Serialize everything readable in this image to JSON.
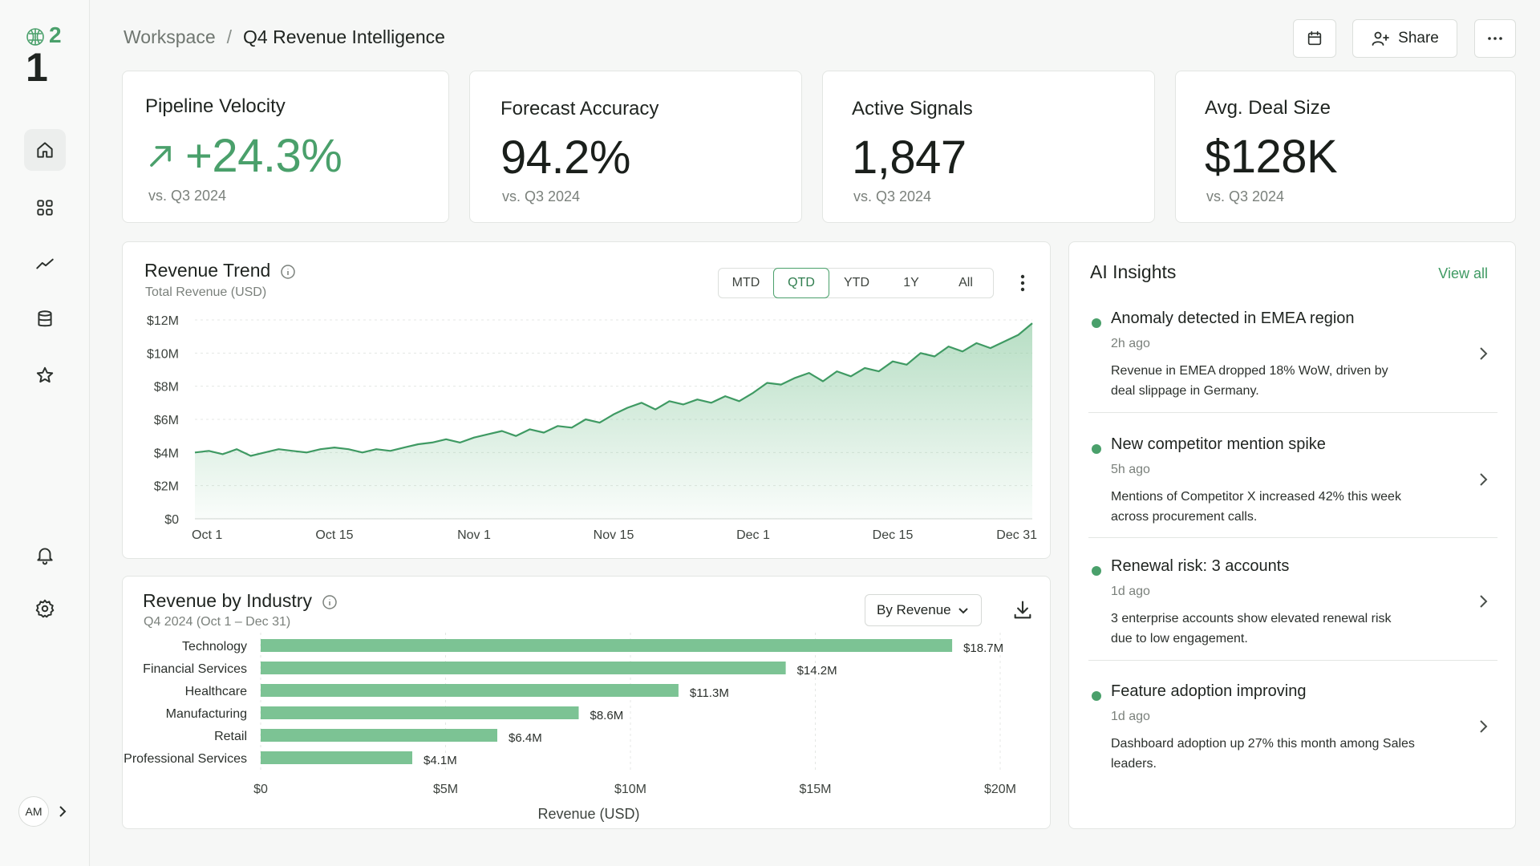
{
  "app": {
    "logo_text": "1",
    "logo_superscript": "2",
    "avatar_initials": "AM"
  },
  "breadcrumb": {
    "root": "Workspace",
    "separator": "/",
    "current": "Q4 Revenue Intelligence"
  },
  "header": {
    "share_label": "Share"
  },
  "sidebar": {
    "items": [
      {
        "name": "home",
        "icon": "home-icon",
        "active": true
      },
      {
        "name": "grid",
        "icon": "grid-icon"
      },
      {
        "name": "analytics",
        "icon": "trend-icon"
      },
      {
        "name": "data",
        "icon": "database-icon"
      },
      {
        "name": "favorites",
        "icon": "star-icon"
      },
      {
        "name": "notifications",
        "icon": "bell-icon"
      },
      {
        "name": "settings",
        "icon": "gear-icon"
      }
    ]
  },
  "kpis": [
    {
      "title": "Pipeline Velocity",
      "value": "+24.3%",
      "sub": "vs. Q3 2024",
      "trend": "up"
    },
    {
      "title": "Forecast  Accuracy",
      "value": "94.2%",
      "sub": "vs. Q3 2024"
    },
    {
      "title": "Active  Signals",
      "value": "1,847",
      "sub": "vs. Q3 2024"
    },
    {
      "title": "Avg. Deal Size",
      "value": "$128K",
      "sub": "vs. Q3 2024"
    }
  ],
  "revenue_trend": {
    "title": "Revenue Trend",
    "subtitle": "Total Revenue (USD)",
    "ranges": [
      "MTD",
      "QTD",
      "YTD",
      "1Y",
      "All"
    ],
    "active_range": "QTD"
  },
  "industry": {
    "title": "Revenue by Industry",
    "subtitle": "Q4 2024 (Oct 1 – Dec 31)",
    "sort_label": "By Revenue"
  },
  "insights": {
    "title": "AI Insights",
    "view_all": "View all",
    "items": [
      {
        "title": "Anomaly detected in EMEA region",
        "time": "2h ago",
        "body": "Revenue in EMEA dropped 18% WoW, driven by deal slippage in Germany."
      },
      {
        "title": "New competitor mention spike",
        "time": "5h ago",
        "body": "Mentions of Competitor X increased 42% this week across procurement calls."
      },
      {
        "title": "Renewal risk: 3 accounts",
        "time": "1d ago",
        "body": "3 enterprise accounts show elevated renewal risk due to low engagement."
      },
      {
        "title": "Feature adoption improving",
        "time": "1d ago",
        "body": "Dashboard adoption up 27% this month among Sales leaders."
      }
    ]
  },
  "colors": {
    "accent": "#4aa06b",
    "bar": "#7cc394",
    "line": "#3f9a63"
  },
  "chart_data": [
    {
      "type": "area",
      "title": "Revenue Trend",
      "subtitle": "Total Revenue (USD)",
      "xlabel": "",
      "ylabel": "",
      "x_ticks": [
        "Oct 1",
        "Oct 15",
        "Nov 1",
        "Nov 15",
        "Dec 1",
        "Dec 15",
        "Dec 31"
      ],
      "y_ticks": [
        "$0",
        "$2M",
        "$4M",
        "$6M",
        "$8M",
        "$10M",
        "$12M"
      ],
      "ylim": [
        0,
        12
      ],
      "unit": "$M",
      "grid": true,
      "series": [
        {
          "values": [
            4.0,
            4.1,
            3.9,
            4.2,
            3.8,
            4.0,
            4.2,
            4.1,
            4.0,
            4.2,
            4.3,
            4.2,
            4.0,
            4.2,
            4.1,
            4.3,
            4.5,
            4.6,
            4.8,
            4.6,
            4.9,
            5.1,
            5.3,
            5.0,
            5.4,
            5.2,
            5.6,
            5.5,
            6.0,
            5.8,
            6.3,
            6.7,
            7.0,
            6.6,
            7.1,
            6.9,
            7.2,
            7.0,
            7.4,
            7.1,
            7.6,
            8.2,
            8.1,
            8.5,
            8.8,
            8.3,
            8.9,
            8.6,
            9.1,
            8.9,
            9.5,
            9.3,
            10.0,
            9.8,
            10.4,
            10.1,
            10.6,
            10.3,
            10.7,
            11.1,
            11.8
          ]
        }
      ]
    },
    {
      "type": "bar",
      "orientation": "horizontal",
      "title": "Revenue by Industry",
      "subtitle": "Q4 2024 (Oct 1 – Dec 31)",
      "xlabel": "Revenue (USD)",
      "categories": [
        "Technology",
        "Financial Services",
        "Healthcare",
        "Manufacturing",
        "Retail",
        "Professional Services"
      ],
      "values": [
        18.7,
        14.2,
        11.3,
        8.6,
        6.4,
        4.1
      ],
      "value_labels": [
        "$18.7M",
        "$14.2M",
        "$11.3M",
        "$8.6M",
        "$6.4M",
        "$4.1M"
      ],
      "x_ticks": [
        "$0",
        "$5M",
        "$10M",
        "$15M",
        "$20M"
      ],
      "xlim": [
        0,
        20
      ],
      "grid": true
    }
  ]
}
